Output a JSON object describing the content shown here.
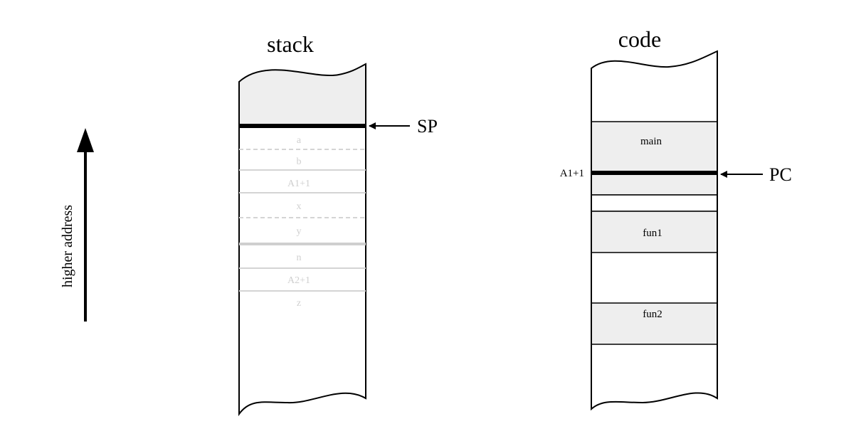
{
  "stack": {
    "title": "stack",
    "pointer_label": "SP",
    "cells": [
      "a",
      "b",
      "A1+1",
      "x",
      "y",
      "n",
      "A2+1",
      "z"
    ]
  },
  "code": {
    "title": "code",
    "pointer_label": "PC",
    "pc_address": "A1+1",
    "blocks": [
      "main",
      "fun1",
      "fun2"
    ]
  },
  "axis": {
    "label": "higher address"
  },
  "colors": {
    "shade": "#eeeeee",
    "faded": "#d4d4d4",
    "ink": "#000000"
  }
}
